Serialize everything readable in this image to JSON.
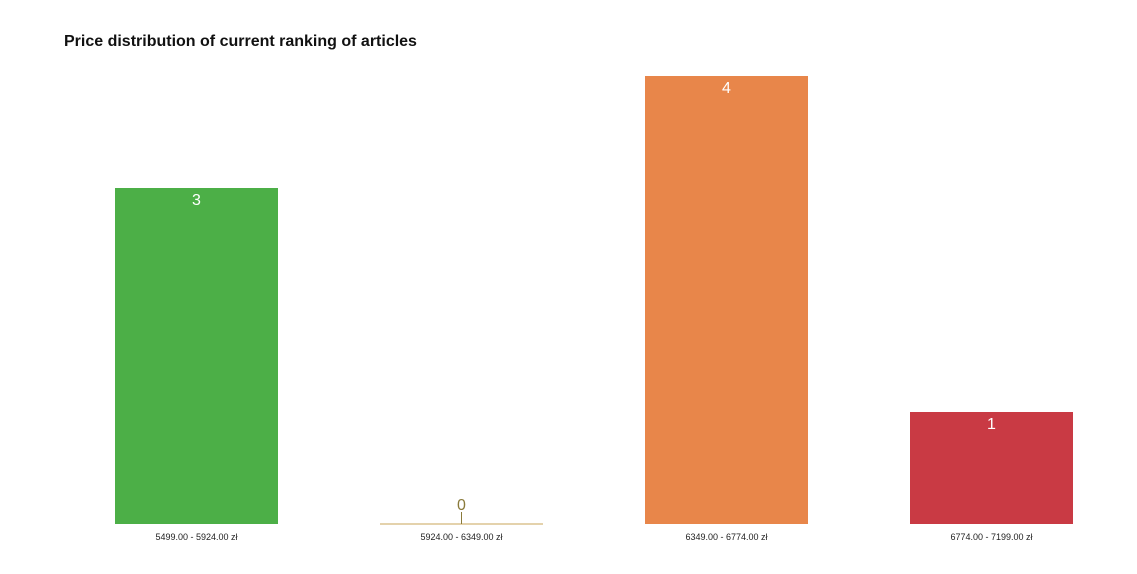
{
  "chart_data": {
    "type": "bar",
    "title": "Price distribution of current ranking of articles",
    "xlabel": "",
    "ylabel": "",
    "categories": [
      "5499.00 - 5924.00 zł",
      "5924.00 - 6349.00 zł",
      "6349.00 - 6774.00 zł",
      "6774.00 - 7199.00 zł"
    ],
    "values": [
      3,
      0,
      4,
      1
    ],
    "value_labels": [
      "3",
      "0",
      "4",
      "1"
    ],
    "colors": [
      "#4caf47",
      "#c9a55a",
      "#e8864a",
      "#c93a44"
    ],
    "ylim": [
      0,
      4
    ],
    "grid": false,
    "legend": "none"
  }
}
